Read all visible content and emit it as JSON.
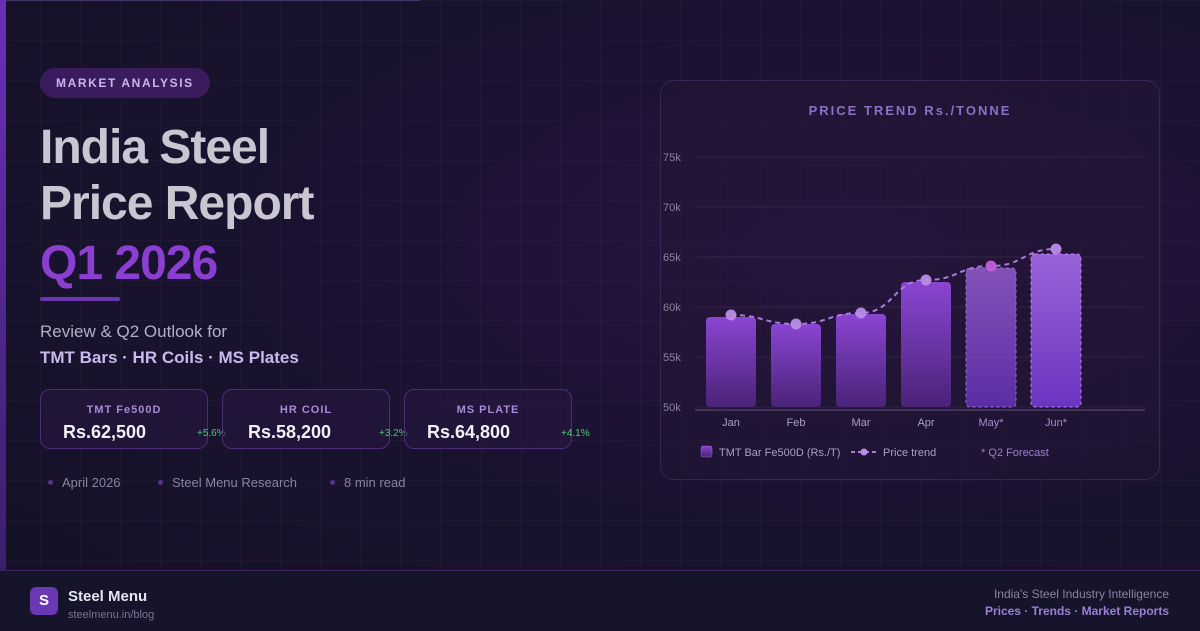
{
  "header": {
    "badge": "MARKET ANALYSIS",
    "title_line1": "India Steel",
    "title_line2": "Price Report",
    "title_accent": "Q1 2026",
    "subtitle": "Review & Q2 Outlook for",
    "products": "TMT Bars · HR Coils · MS Plates"
  },
  "stats": [
    {
      "label": "TMT Fe500D",
      "value": "Rs.62,500",
      "change": "+5.6%"
    },
    {
      "label": "HR COIL",
      "value": "Rs.58,200",
      "change": "+3.2%"
    },
    {
      "label": "MS PLATE",
      "value": "Rs.64,800",
      "change": "+4.1%"
    }
  ],
  "meta": {
    "date": "April 2026",
    "author": "Steel Menu Research",
    "read_time": "8 min read"
  },
  "chart_data": {
    "type": "bar",
    "title": "PRICE TREND Rs./TONNE",
    "categories": [
      "Jan",
      "Feb",
      "Mar",
      "Apr",
      "May*",
      "Jun*"
    ],
    "ytick_labels": [
      "50k",
      "55k",
      "60k",
      "65k",
      "70k",
      "75k"
    ],
    "yticks": [
      50000,
      55000,
      60000,
      65000,
      70000,
      75000
    ],
    "ylim": [
      50000,
      75000
    ],
    "series": [
      {
        "name": "TMT Bar Fe500D (Rs./T)",
        "kind": "bar",
        "values": [
          59000,
          58300,
          59300,
          62500,
          63900,
          65300
        ]
      },
      {
        "name": "Price trend",
        "kind": "line",
        "values": [
          59200,
          58300,
          59400,
          62700,
          64100,
          65800
        ]
      }
    ],
    "forecast_note": "* Q2 Forecast",
    "forecast_start_index": 4,
    "grid": true,
    "legend_position": "bottom",
    "colors": {
      "bar": "#7b3fc4",
      "bar_forecast": "#8a4fd0",
      "line": "#b07de0",
      "point": "#c794ef"
    }
  },
  "footer": {
    "logo_letter": "S",
    "brand": "Steel Menu",
    "url": "steelmenu.in/blog",
    "tagline": "India's Steel Industry Intelligence",
    "links": "Prices · Trends · Market Reports"
  }
}
